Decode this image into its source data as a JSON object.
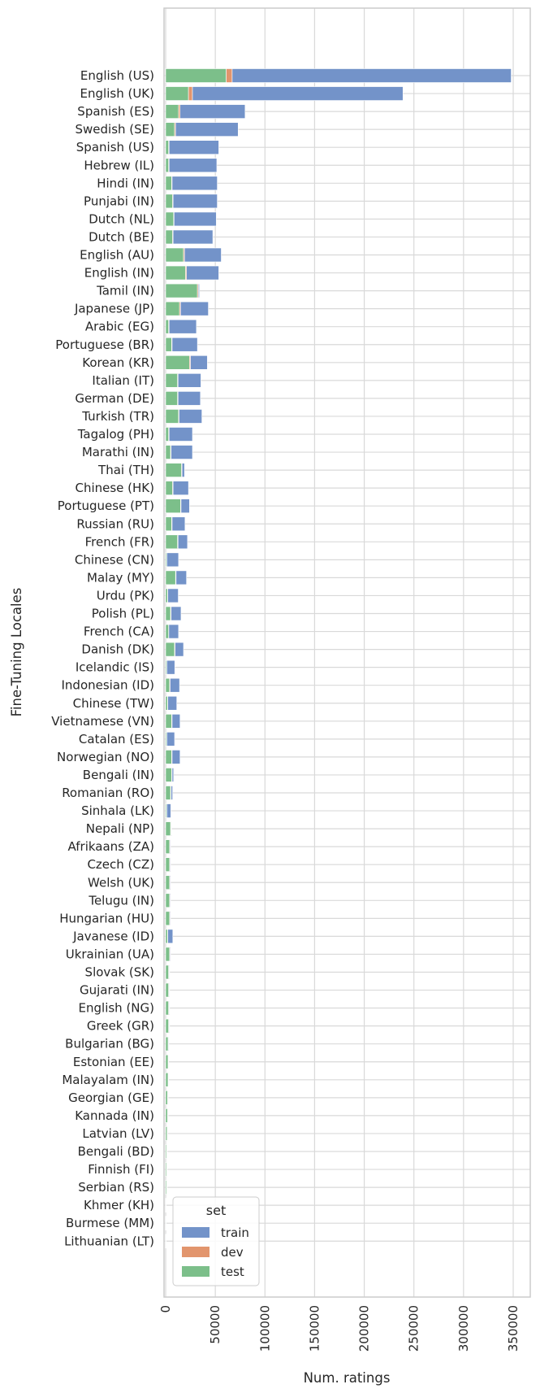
{
  "chart_data": {
    "type": "bar",
    "orientation": "horizontal",
    "stacked": true,
    "xlabel": "Num. ratings",
    "ylabel": "Fine-Tuning Locales",
    "xlim": [
      0,
      360000
    ],
    "xticks": [
      0,
      50000,
      100000,
      150000,
      200000,
      250000,
      300000,
      350000
    ],
    "grid": true,
    "legend": {
      "title": "set",
      "placement": "lower-left",
      "entries": [
        "train",
        "dev",
        "test"
      ]
    },
    "colors": {
      "train": "#7393c9",
      "dev": "#e2956d",
      "test": "#7cbf8a"
    },
    "categories": [
      "English (US)",
      "English (UK)",
      "Spanish (ES)",
      "Swedish (SE)",
      "Spanish (US)",
      "Hebrew (IL)",
      "Hindi (IN)",
      "Punjabi (IN)",
      "Dutch (NL)",
      "Dutch (BE)",
      "English (AU)",
      "English (IN)",
      "Tamil (IN)",
      "Japanese (JP)",
      "Arabic (EG)",
      "Portuguese (BR)",
      "Korean (KR)",
      "Italian (IT)",
      "German (DE)",
      "Turkish (TR)",
      "Tagalog (PH)",
      "Marathi (IN)",
      "Thai (TH)",
      "Chinese (HK)",
      "Portuguese (PT)",
      "Russian (RU)",
      "French (FR)",
      "Chinese (CN)",
      "Malay (MY)",
      "Urdu (PK)",
      "Polish (PL)",
      "French (CA)",
      "Danish (DK)",
      "Icelandic (IS)",
      "Indonesian (ID)",
      "Chinese (TW)",
      "Vietnamese (VN)",
      "Catalan (ES)",
      "Norwegian (NO)",
      "Bengali (IN)",
      "Romanian (RO)",
      "Sinhala (LK)",
      "Nepali (NP)",
      "Afrikaans (ZA)",
      "Czech (CZ)",
      "Welsh (UK)",
      "Telugu (IN)",
      "Hungarian (HU)",
      "Javanese (ID)",
      "Ukrainian (UA)",
      "Slovak (SK)",
      "Gujarati (IN)",
      "English (NG)",
      "Greek (GR)",
      "Bulgarian (BG)",
      "Estonian (EE)",
      "Malayalam (IN)",
      "Georgian (GE)",
      "Kannada (IN)",
      "Latvian (LV)",
      "Bengali (BD)",
      "Finnish (FI)",
      "Serbian (RS)",
      "Khmer (KH)",
      "Burmese (MM)",
      "Lithuanian (LT)"
    ],
    "series": [
      {
        "name": "test",
        "values": [
          61000,
          23000,
          13000,
          9000,
          3000,
          3000,
          6000,
          7000,
          8000,
          7000,
          18000,
          20000,
          32000,
          14000,
          3000,
          6000,
          24000,
          12000,
          12000,
          13000,
          3000,
          5000,
          16000,
          7000,
          15000,
          6000,
          12000,
          1000,
          10000,
          2000,
          5000,
          3000,
          9000,
          1000,
          4000,
          2000,
          6000,
          1000,
          6000,
          6000,
          5000,
          1000,
          5000,
          4000,
          4000,
          4000,
          4000,
          4000,
          2000,
          4000,
          3000,
          3000,
          3000,
          3000,
          2500,
          2500,
          2500,
          2000,
          2000,
          1500,
          1000,
          1000,
          1000,
          200,
          200,
          200
        ]
      },
      {
        "name": "dev",
        "values": [
          6000,
          4000,
          1500,
          1000,
          500,
          500,
          500,
          500,
          500,
          500,
          1000,
          1000,
          1000,
          1000,
          500,
          500,
          1000,
          500,
          500,
          500,
          500,
          500,
          500,
          500,
          500,
          500,
          500,
          200,
          500,
          200,
          500,
          200,
          500,
          200,
          500,
          200,
          500,
          200,
          500,
          500,
          500,
          200,
          500,
          500,
          500,
          500,
          500,
          500,
          200,
          500,
          500,
          500,
          500,
          500,
          200,
          200,
          200,
          200,
          200,
          200,
          200,
          200,
          200,
          100,
          100,
          100
        ]
      },
      {
        "name": "train",
        "values": [
          281000,
          212000,
          65500,
          63000,
          50000,
          48000,
          45500,
          44500,
          42500,
          40000,
          37000,
          32500,
          1000,
          28000,
          27500,
          25500,
          17000,
          23000,
          22500,
          23000,
          23500,
          21500,
          2500,
          15500,
          8500,
          13000,
          9500,
          11800,
          10500,
          10500,
          10000,
          9800,
          8500,
          8000,
          9500,
          9000,
          8000,
          7800,
          8000,
          1500,
          1500,
          4000,
          500,
          500,
          500,
          500,
          500,
          500,
          5000,
          500,
          500,
          500,
          500,
          500,
          500,
          300,
          300,
          300,
          300,
          300,
          300,
          300,
          300,
          100,
          100,
          100
        ]
      }
    ]
  }
}
